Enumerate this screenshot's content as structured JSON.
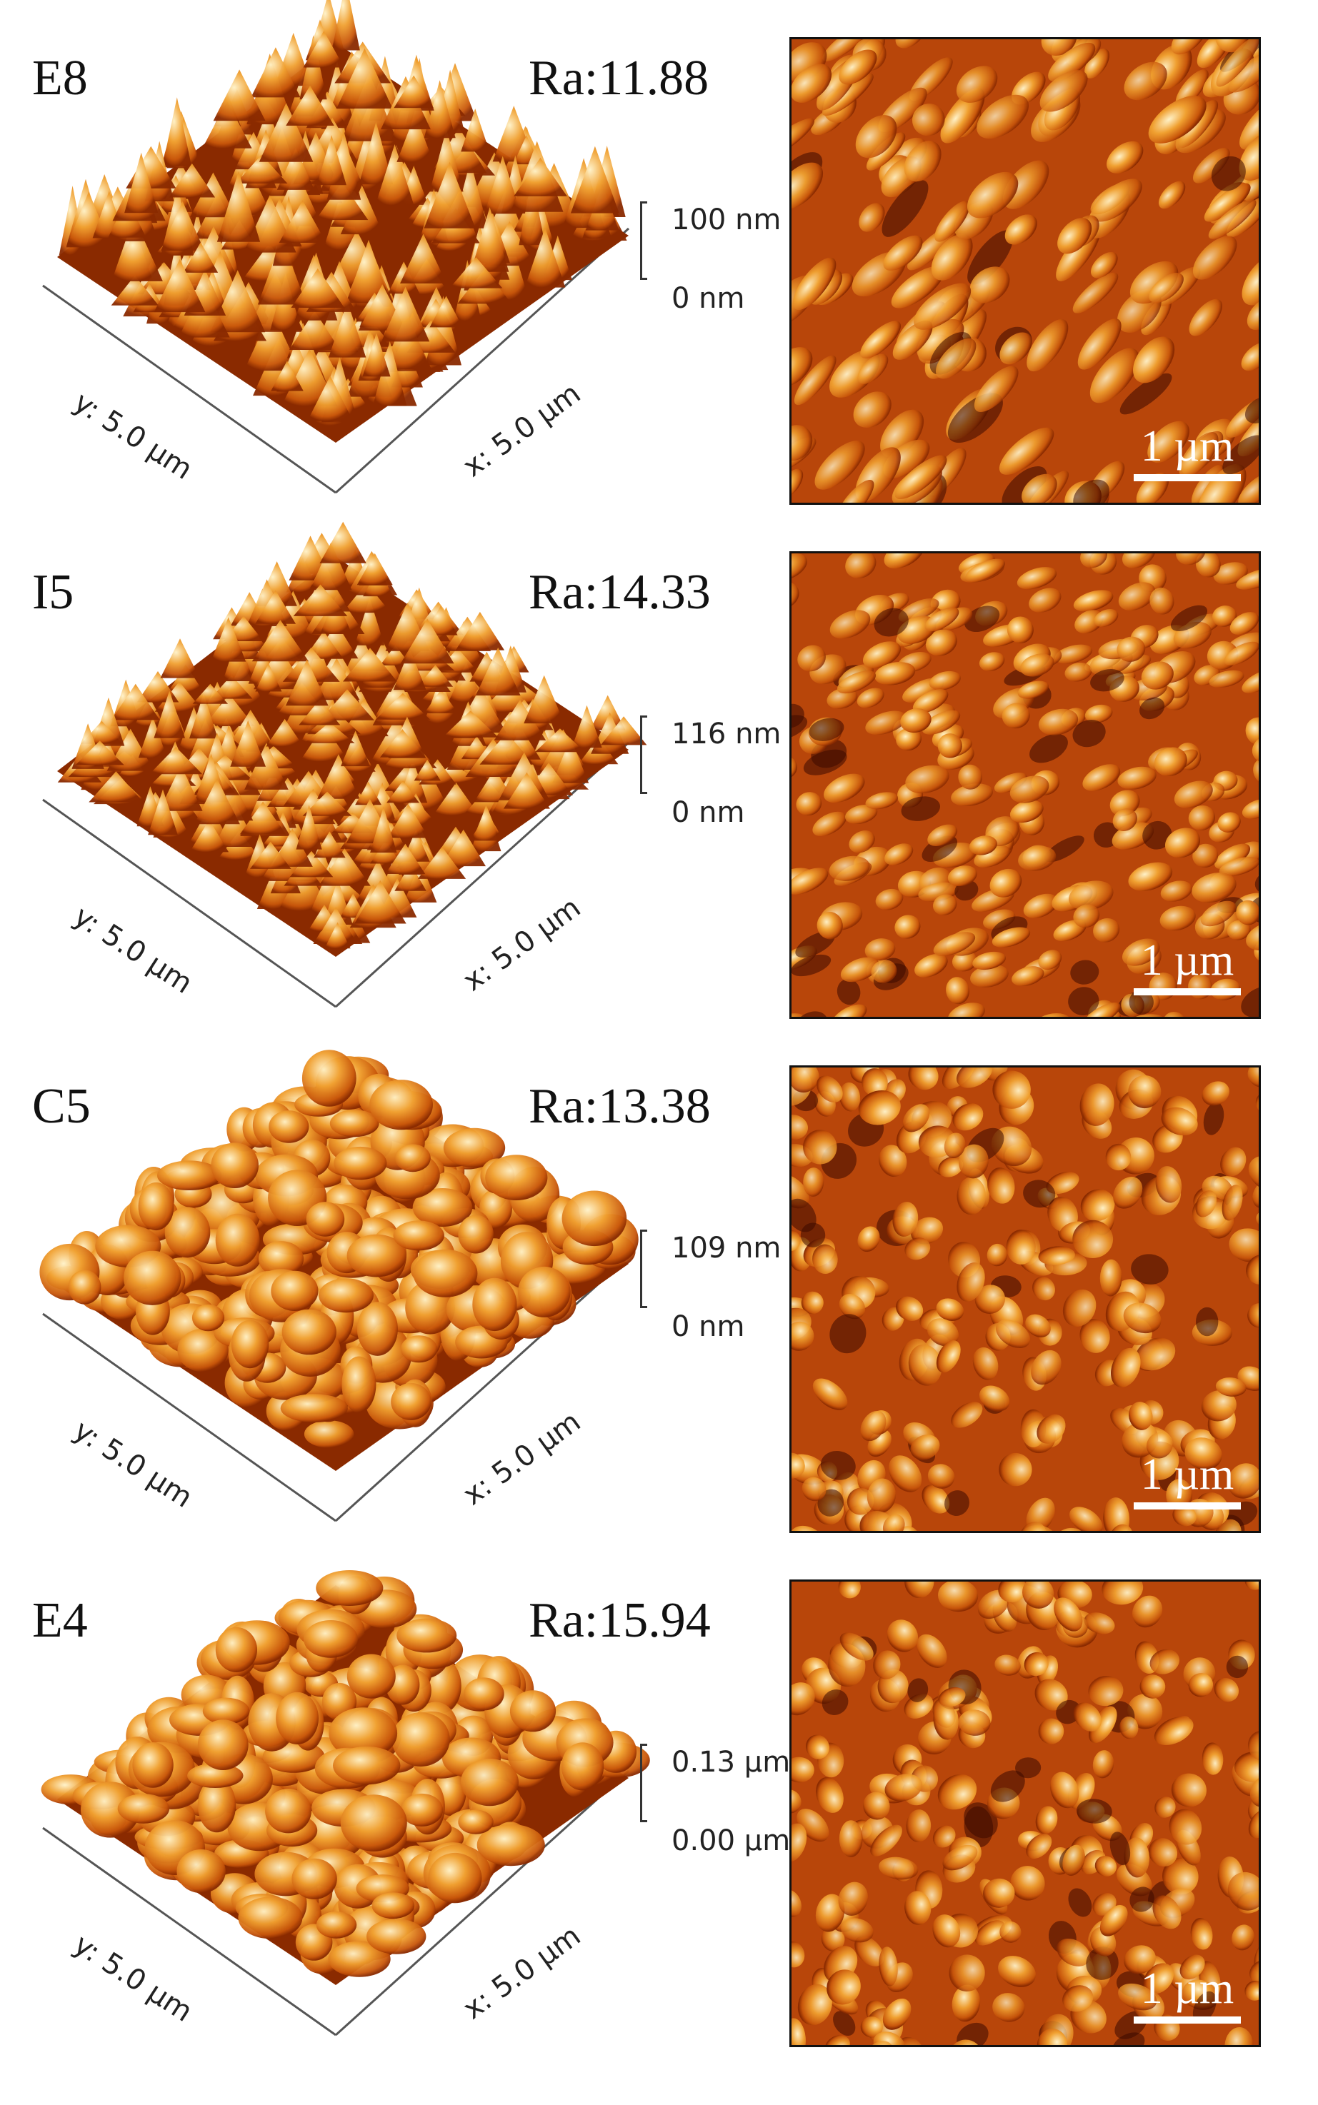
{
  "figure": {
    "rows": [
      {
        "name": "E8",
        "ra": "Ra:11.88",
        "z_max": "100 nm",
        "z_min": "0 nm",
        "y_axis": "y: 5.0 µm",
        "x_axis": "x: 5.0 µm",
        "scale_bar": "1 µm",
        "grain_style": "sharp-elongated"
      },
      {
        "name": "I5",
        "ra": "Ra:14.33",
        "z_max": "116 nm",
        "z_min": "0 nm",
        "y_axis": "y: 5.0 µm",
        "x_axis": "x: 5.0 µm",
        "scale_bar": "1 µm",
        "grain_style": "dense-fine"
      },
      {
        "name": "C5",
        "ra": "Ra:13.38",
        "z_max": "109 nm",
        "z_min": "0 nm",
        "y_axis": "y: 5.0 µm",
        "x_axis": "x: 5.0 µm",
        "scale_bar": "1 µm",
        "grain_style": "rounded-clustered"
      },
      {
        "name": "E4",
        "ra": "Ra:15.94",
        "z_max": "0.13 µm",
        "z_min": "0.00 µm",
        "y_axis": "y: 5.0 µm",
        "x_axis": "x: 5.0 µm",
        "scale_bar": "1 µm",
        "grain_style": "rounded-coarse"
      }
    ],
    "colors": {
      "dark": "#3a0a00",
      "mid_dark": "#8a2a00",
      "mid": "#c8560a",
      "bright": "#f0a030",
      "highlight": "#fff2c8",
      "background_orange": "#b8460a"
    }
  }
}
